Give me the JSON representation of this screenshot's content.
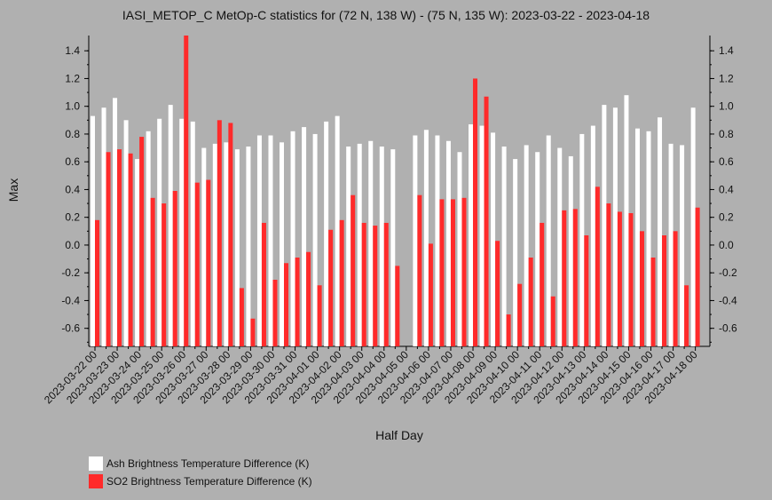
{
  "chart_data": {
    "type": "bar",
    "title": "IASI_METOP_C MetOp-C statistics for (72 N, 138 W) - (75 N, 135 W): 2023-03-22 - 2023-04-18",
    "xlabel": "Half Day",
    "ylabel": "Max",
    "ylim": [
      -0.73,
      1.51
    ],
    "yticks": [
      -0.6,
      -0.4,
      -0.2,
      0.0,
      0.2,
      0.4,
      0.6,
      0.8,
      1.0,
      1.2,
      1.4
    ],
    "categories": [
      "2023-03-22 00",
      "2023-03-22 12",
      "2023-03-23 00",
      "2023-03-23 12",
      "2023-03-24 00",
      "2023-03-24 12",
      "2023-03-25 00",
      "2023-03-25 12",
      "2023-03-26 00",
      "2023-03-26 12",
      "2023-03-27 00",
      "2023-03-27 12",
      "2023-03-28 00",
      "2023-03-28 12",
      "2023-03-29 00",
      "2023-03-29 12",
      "2023-03-30 00",
      "2023-03-30 12",
      "2023-03-31 00",
      "2023-03-31 12",
      "2023-04-01 00",
      "2023-04-01 12",
      "2023-04-02 00",
      "2023-04-02 12",
      "2023-04-03 00",
      "2023-04-03 12",
      "2023-04-04 00",
      "2023-04-04 12",
      "2023-04-05 00",
      "2023-04-05 12",
      "2023-04-06 00",
      "2023-04-06 12",
      "2023-04-07 00",
      "2023-04-07 12",
      "2023-04-08 00",
      "2023-04-08 12",
      "2023-04-09 00",
      "2023-04-09 12",
      "2023-04-10 00",
      "2023-04-10 12",
      "2023-04-11 00",
      "2023-04-11 12",
      "2023-04-12 00",
      "2023-04-12 12",
      "2023-04-13 00",
      "2023-04-13 12",
      "2023-04-14 00",
      "2023-04-14 12",
      "2023-04-15 00",
      "2023-04-15 12",
      "2023-04-16 00",
      "2023-04-16 12",
      "2023-04-17 00",
      "2023-04-17 12",
      "2023-04-18 00"
    ],
    "tick_labels": [
      "2023-03-22 00",
      "2023-03-23 00",
      "2023-03-24 00",
      "2023-03-25 00",
      "2023-03-26 00",
      "2023-03-27 00",
      "2023-03-28 00",
      "2023-03-29 00",
      "2023-03-30 00",
      "2023-03-31 00",
      "2023-04-01 00",
      "2023-04-02 00",
      "2023-04-03 00",
      "2023-04-04 00",
      "2023-04-05 00",
      "2023-04-06 00",
      "2023-04-07 00",
      "2023-04-08 00",
      "2023-04-09 00",
      "2023-04-10 00",
      "2023-04-11 00",
      "2023-04-12 00",
      "2023-04-13 00",
      "2023-04-14 00",
      "2023-04-15 00",
      "2023-04-16 00",
      "2023-04-17 00",
      "2023-04-18 00"
    ],
    "series": [
      {
        "name": "Ash Brightness Temperature Difference (K)",
        "color": "#ffffff",
        "values": [
          0.93,
          0.99,
          1.06,
          0.9,
          0.62,
          0.82,
          0.91,
          1.01,
          0.91,
          0.89,
          0.7,
          0.73,
          0.74,
          0.69,
          0.71,
          0.79,
          0.79,
          0.74,
          0.82,
          0.85,
          0.8,
          0.89,
          0.93,
          0.71,
          0.73,
          0.75,
          0.71,
          0.69,
          null,
          0.79,
          0.83,
          0.79,
          0.75,
          0.67,
          0.87,
          0.86,
          0.81,
          0.71,
          0.62,
          0.72,
          0.67,
          0.79,
          0.7,
          0.64,
          0.8,
          0.86,
          1.01,
          0.99,
          1.08,
          0.84,
          0.82,
          0.92,
          0.73,
          0.72,
          0.99
        ]
      },
      {
        "name": "SO2 Brightness Temperature Difference (K)",
        "color": "#ff2a2a",
        "values": [
          0.18,
          0.67,
          0.69,
          0.66,
          0.78,
          0.34,
          0.3,
          0.39,
          1.51,
          0.45,
          0.47,
          0.9,
          0.88,
          -0.31,
          -0.53,
          0.16,
          -0.25,
          -0.13,
          -0.09,
          -0.05,
          -0.29,
          0.11,
          0.18,
          0.36,
          0.16,
          0.14,
          0.16,
          -0.15,
          null,
          0.36,
          0.01,
          0.33,
          0.33,
          0.34,
          1.2,
          1.07,
          0.03,
          -0.5,
          -0.28,
          -0.09,
          0.16,
          -0.37,
          0.25,
          0.26,
          0.07,
          0.42,
          0.3,
          0.24,
          0.23,
          0.1,
          -0.09,
          0.07,
          0.1,
          -0.29,
          0.27
        ]
      }
    ],
    "grid": false,
    "legend_position": "bottom-left"
  }
}
